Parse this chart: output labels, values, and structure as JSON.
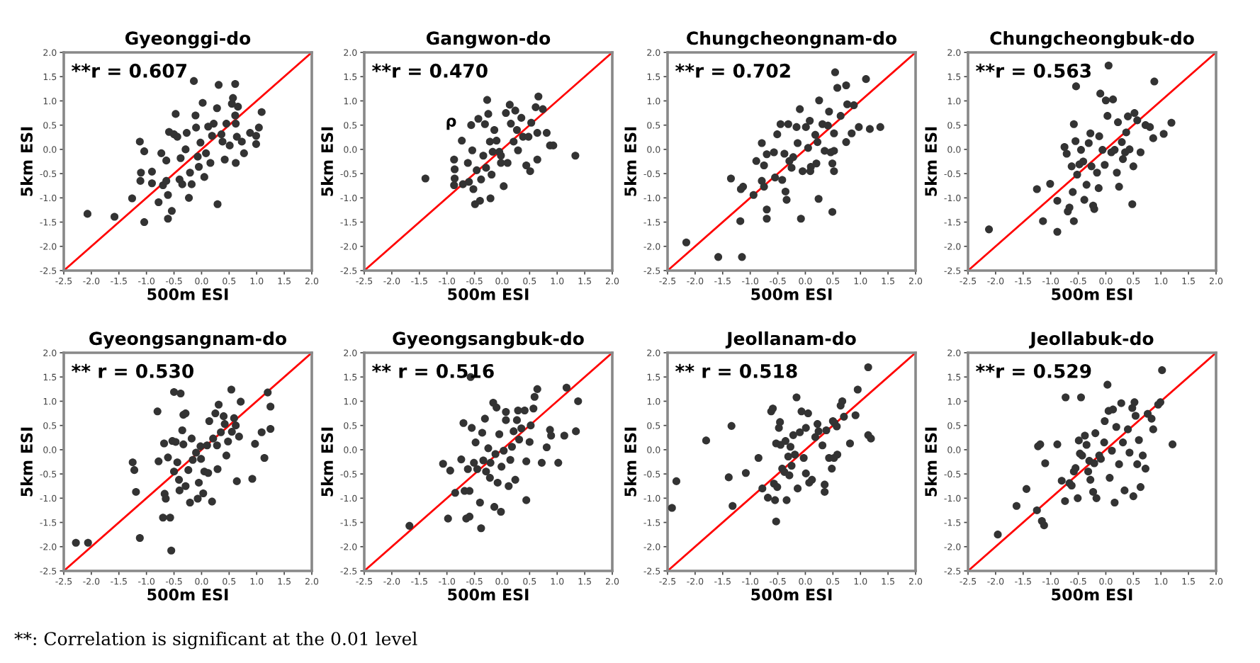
{
  "chart_data": [
    {
      "type": "scatter",
      "title": "Gyeonggi-do",
      "xlabel": "500m ESI",
      "ylabel": "5km ESI",
      "xlim": [
        -2.5,
        2.0
      ],
      "ylim": [
        -2.5,
        2.0
      ],
      "xticks": [
        -2.5,
        {
          "value": -2,
          "label": "-2.0"
        },
        -1.5,
        {
          "value": -1,
          "label": "-1.0"
        },
        -0.5,
        {
          "value": 0,
          "label": "0.0"
        },
        0.5,
        {
          "value": 1,
          "label": "1.0"
        },
        1.5,
        {
          "value": 2,
          "label": "2.0"
        }
      ],
      "yticks": [
        -2.5,
        {
          "value": -2,
          "label": "-2.0"
        },
        -1.5,
        {
          "value": -1,
          "label": "-1.0"
        },
        -0.5,
        {
          "value": 0,
          "label": "0.0"
        },
        0.5,
        {
          "value": 1,
          "label": "1.0"
        },
        1.5,
        {
          "value": 2,
          "label": "2.0"
        }
      ],
      "annotations": [
        "**r = 0.607"
      ],
      "series": [
        {
          "marker": "circle",
          "color": "#333333",
          "x": [
            -2.07,
            -1.58,
            -1.26,
            -1.04,
            -1.12,
            -1.04,
            -1.1,
            -1.11,
            -0.9,
            -0.9,
            -0.78,
            -0.73,
            -0.7,
            -0.64,
            -0.64,
            -0.61,
            -0.61,
            -0.54,
            -0.47,
            -0.59,
            -0.5,
            -0.44,
            -0.38,
            -0.4,
            -0.35,
            -0.29,
            -0.27,
            -0.23,
            -0.21,
            -0.18,
            -0.14,
            -0.11,
            -0.1,
            -0.07,
            -0.05,
            -0.02,
            0.02,
            0.05,
            0.08,
            0.12,
            0.16,
            0.19,
            0.22,
            0.28,
            0.29,
            0.31,
            0.36,
            0.42,
            0.45,
            0.51,
            0.55,
            0.57,
            0.61,
            0.61,
            0.62,
            0.66,
            0.64,
            0.73,
            0.77,
            0.88,
            0.99,
            0.99,
            1.04,
            1.09,
            0.62,
            0.38
          ],
          "values": [
            -1.33,
            -1.39,
            -1.01,
            -1.5,
            0.16,
            -0.04,
            -0.48,
            -0.65,
            -0.46,
            -0.7,
            -1.09,
            -0.08,
            -0.74,
            -0.65,
            -0.23,
            -0.94,
            -1.43,
            -1.27,
            0.73,
            0.36,
            0.31,
            0.26,
            -0.18,
            -0.62,
            -0.72,
            0.0,
            0.34,
            -1.0,
            -0.48,
            -0.72,
            1.41,
            0.7,
            0.45,
            -0.15,
            -0.36,
            0.14,
            0.96,
            -0.57,
            -0.08,
            0.47,
            -0.28,
            0.28,
            0.53,
            0.85,
            -1.13,
            1.33,
            0.31,
            -0.21,
            0.53,
            0.08,
            0.94,
            1.06,
            1.35,
            0.7,
            0.53,
            0.88,
            0.26,
            0.16,
            -0.08,
            0.34,
            0.28,
            0.11,
            0.45,
            0.77,
            -0.28,
            0.16
          ]
        },
        {
          "type": "line",
          "color": "#ff0000",
          "x": [
            -2.5,
            2.0
          ],
          "values": [
            -2.5,
            2.0
          ]
        }
      ]
    },
    {
      "type": "scatter",
      "title": "Gangwon-do",
      "xlabel": "500m ESI",
      "ylabel": "5km ESI",
      "xlim": [
        -2.5,
        2.0
      ],
      "ylim": [
        -2.5,
        2.0
      ],
      "xticks": [
        -2.5,
        {
          "value": -2,
          "label": "-2.0"
        },
        -1.5,
        {
          "value": -1,
          "label": "-1.0"
        },
        -0.5,
        {
          "value": 0,
          "label": "0.0"
        },
        0.5,
        {
          "value": 1,
          "label": "1.0"
        },
        1.5,
        {
          "value": 2,
          "label": "2.0"
        }
      ],
      "yticks": [
        -2.5,
        {
          "value": -2,
          "label": "-2.0"
        },
        -1.5,
        {
          "value": -1,
          "label": "-1.0"
        },
        -0.5,
        {
          "value": 0,
          "label": "0.0"
        },
        0.5,
        {
          "value": 1,
          "label": "1.0"
        },
        1.5,
        {
          "value": 2,
          "label": "2.0"
        }
      ],
      "annotations": [
        "**r = 0.470",
        "ρ"
      ],
      "series": [
        {
          "marker": "circle",
          "color": "#333333",
          "x": [
            -1.39,
            -0.87,
            -0.86,
            -0.86,
            -0.87,
            -0.73,
            -0.71,
            -0.62,
            -0.6,
            -0.56,
            -0.54,
            -0.52,
            -0.49,
            -0.46,
            -0.43,
            -0.4,
            -0.38,
            -0.34,
            -0.31,
            -0.29,
            -0.27,
            -0.25,
            -0.22,
            -0.21,
            -0.19,
            -0.14,
            -0.1,
            -0.05,
            -0.02,
            0.03,
            0.07,
            0.1,
            0.14,
            0.16,
            0.21,
            0.24,
            0.27,
            0.29,
            0.35,
            0.38,
            0.44,
            0.48,
            0.51,
            0.53,
            0.61,
            0.66,
            0.64,
            0.64,
            0.74,
            0.81,
            0.87,
            0.93,
            1.33,
            -0.02,
            -0.17
          ],
          "values": [
            -0.6,
            -0.21,
            -0.41,
            -0.6,
            -0.74,
            0.18,
            -0.72,
            -0.28,
            -0.67,
            0.5,
            -0.02,
            -0.82,
            -1.13,
            -0.43,
            0.63,
            -1.06,
            -0.62,
            -0.13,
            0.52,
            -0.38,
            1.02,
            0.73,
            0.16,
            -1.01,
            -0.52,
            0.4,
            0.18,
            -0.05,
            -0.28,
            -0.76,
            0.75,
            -0.28,
            0.92,
            0.53,
            0.16,
            0.8,
            0.4,
            -0.02,
            0.65,
            0.26,
            -0.33,
            0.26,
            -0.45,
            0.55,
            0.87,
            1.09,
            0.34,
            -0.21,
            0.83,
            0.34,
            0.08,
            0.08,
            -0.13,
            -0.13,
            -0.05
          ]
        },
        {
          "type": "line",
          "color": "#ff0000",
          "x": [
            -2.5,
            2.0
          ],
          "values": [
            -2.5,
            2.0
          ]
        }
      ]
    },
    {
      "type": "scatter",
      "title": "Chungcheongnam-do",
      "xlabel": "500m ESI",
      "ylabel": "5km ESI",
      "xlim": [
        -2.5,
        2.0
      ],
      "ylim": [
        -2.5,
        2.0
      ],
      "xticks": [
        -2.5,
        {
          "value": -2,
          "label": "-2.0"
        },
        -1.5,
        {
          "value": -1,
          "label": "-1.0"
        },
        -0.5,
        {
          "value": 0,
          "label": "0.0"
        },
        0.5,
        {
          "value": 1,
          "label": "1.0"
        },
        1.5,
        {
          "value": 2,
          "label": "2.0"
        }
      ],
      "yticks": [
        -2.5,
        {
          "value": -2,
          "label": "-2.0"
        },
        -1.5,
        {
          "value": -1,
          "label": "-1.0"
        },
        -0.5,
        {
          "value": 0,
          "label": "0.0"
        },
        0.5,
        {
          "value": 1,
          "label": "1.0"
        },
        1.5,
        {
          "value": 2,
          "label": "2.0"
        }
      ],
      "annotations": [
        "**r = 0.702"
      ],
      "series": [
        {
          "marker": "circle",
          "color": "#333333",
          "x": [
            -2.16,
            -1.58,
            -1.15,
            -1.35,
            -1.17,
            -1.13,
            -1.18,
            -0.94,
            -0.89,
            -0.79,
            -0.79,
            -0.75,
            -0.75,
            -0.7,
            -0.7,
            -0.7,
            -0.57,
            -0.55,
            -0.51,
            -0.45,
            -0.42,
            -0.38,
            -0.36,
            -0.34,
            -0.31,
            -0.29,
            -0.25,
            -0.22,
            -0.16,
            -0.14,
            -0.1,
            -0.08,
            -0.05,
            0.01,
            0.05,
            0.08,
            0.1,
            0.09,
            0.18,
            0.22,
            0.24,
            0.25,
            0.31,
            0.35,
            0.41,
            0.43,
            0.46,
            0.49,
            0.49,
            0.52,
            0.52,
            0.54,
            0.58,
            0.64,
            0.74,
            0.76,
            0.74,
            0.84,
            0.88,
            0.97,
            1.1,
            1.17,
            1.36,
            0.52,
            0.2
          ],
          "values": [
            -1.92,
            -2.22,
            -2.22,
            -0.6,
            -0.82,
            -0.77,
            -1.48,
            -0.94,
            -0.24,
            0.13,
            -0.65,
            -0.77,
            -0.33,
            -1.24,
            -1.43,
            -0.1,
            -0.06,
            -0.58,
            0.31,
            0.52,
            -0.63,
            -0.09,
            -0.87,
            -1.04,
            0.52,
            -0.24,
            -0.38,
            -0.16,
            0.46,
            0.13,
            0.83,
            -1.43,
            -0.45,
            0.46,
            0.03,
            0.59,
            -0.36,
            -0.45,
            0.3,
            0.15,
            -1.02,
            1.01,
            0.52,
            -0.03,
            0.49,
            0.78,
            -0.06,
            -0.29,
            -1.29,
            -0.45,
            0.33,
            1.59,
            1.27,
            0.69,
            1.32,
            0.93,
            0.15,
            0.33,
            0.91,
            0.46,
            1.45,
            0.42,
            0.46,
            -0.03,
            -0.29
          ]
        },
        {
          "type": "line",
          "color": "#ff0000",
          "x": [
            -2.5,
            2.0
          ],
          "values": [
            -2.5,
            2.0
          ]
        }
      ]
    },
    {
      "type": "scatter",
      "title": "Chungcheongbuk-do",
      "xlabel": "500m ESI",
      "ylabel": "5km ESI",
      "xlim": [
        -2.5,
        2.0
      ],
      "ylim": [
        -2.5,
        2.0
      ],
      "xticks": [
        -2.5,
        {
          "value": -2,
          "label": "-2.0"
        },
        -1.5,
        {
          "value": -1,
          "label": "-1.0"
        },
        -0.5,
        {
          "value": 0,
          "label": "0.0"
        },
        0.5,
        {
          "value": 1,
          "label": "1.0"
        },
        1.5,
        {
          "value": 2,
          "label": "2.0"
        }
      ],
      "yticks": [
        -2.5,
        {
          "value": -2,
          "label": "-2.0"
        },
        -1.5,
        {
          "value": -1,
          "label": "-1.0"
        },
        -0.5,
        {
          "value": 0,
          "label": "0.0"
        },
        0.5,
        {
          "value": 1,
          "label": "1.0"
        },
        1.5,
        {
          "value": 2,
          "label": "2.0"
        }
      ],
      "annotations": [
        "**r = 0.563"
      ],
      "series": [
        {
          "marker": "circle",
          "color": "#333333",
          "x": [
            -2.12,
            -1.25,
            -1.14,
            -1.01,
            -0.88,
            -0.88,
            -0.75,
            -0.71,
            -0.69,
            -0.66,
            -0.62,
            -0.6,
            -0.58,
            -0.58,
            -0.54,
            -0.55,
            -0.52,
            -0.48,
            -0.45,
            -0.41,
            -0.39,
            -0.35,
            -0.31,
            -0.28,
            -0.26,
            -0.23,
            -0.21,
            -0.16,
            -0.12,
            -0.1,
            -0.13,
            -0.06,
            -0.02,
            0.0,
            0.03,
            0.05,
            0.1,
            0.13,
            0.16,
            0.2,
            0.22,
            0.24,
            0.29,
            0.35,
            0.37,
            0.4,
            0.43,
            0.48,
            0.5,
            0.52,
            0.57,
            0.63,
            0.72,
            0.8,
            0.86,
            0.88,
            1.05,
            1.19,
            0.31
          ],
          "values": [
            -1.65,
            -0.82,
            -1.48,
            -0.71,
            -1.06,
            -1.7,
            0.05,
            -0.09,
            -1.28,
            -1.2,
            -0.35,
            -0.88,
            -1.48,
            0.52,
            1.3,
            0.17,
            -0.52,
            -0.31,
            -0.01,
            -0.25,
            -1.04,
            -0.73,
            0.13,
            0.33,
            -0.35,
            -1.16,
            -1.23,
            -0.48,
            0.27,
            1.15,
            -0.8,
            -0.01,
            -0.32,
            1.01,
            0.69,
            1.73,
            -0.06,
            1.03,
            -0.01,
            -0.48,
            0.56,
            -0.77,
            0.15,
            -0.06,
            0.35,
            0.68,
            0.0,
            -1.13,
            -0.35,
            0.75,
            0.6,
            -0.06,
            0.5,
            0.46,
            0.23,
            1.4,
            0.32,
            0.55,
            -0.2
          ]
        },
        {
          "type": "line",
          "color": "#ff0000",
          "x": [
            -2.5,
            2.0
          ],
          "values": [
            -2.5,
            2.0
          ]
        }
      ]
    },
    {
      "type": "scatter",
      "title": "Gyeongsangnam-do",
      "xlabel": "500m ESI",
      "ylabel": "5km ESI",
      "xlim": [
        -2.5,
        2.0
      ],
      "ylim": [
        -2.5,
        2.0
      ],
      "xticks": [
        -2.5,
        {
          "value": -2,
          "label": "-2.0"
        },
        -1.5,
        {
          "value": -1,
          "label": "-1.0"
        },
        -0.5,
        {
          "value": 0,
          "label": "0.0"
        },
        0.5,
        {
          "value": 1,
          "label": "1.0"
        },
        1.5,
        {
          "value": 2,
          "label": "2.0"
        }
      ],
      "yticks": [
        -2.5,
        {
          "value": -2,
          "label": "-2.0"
        },
        -1.5,
        {
          "value": -1,
          "label": "-1.0"
        },
        -0.5,
        {
          "value": 0,
          "label": "0.0"
        },
        0.5,
        {
          "value": 1,
          "label": "1.0"
        },
        1.5,
        {
          "value": 2,
          "label": "2.0"
        }
      ],
      "annotations": [
        "** r = 0.530",
        "**: Correlation is significant at the 0.01 level"
      ],
      "series": [
        {
          "marker": "circle",
          "color": "#333333",
          "x": [
            -2.28,
            -2.06,
            -1.12,
            -1.19,
            -1.22,
            -1.25,
            -0.8,
            -0.78,
            -0.68,
            -0.7,
            -0.57,
            -0.55,
            -0.67,
            -0.65,
            -0.61,
            -0.53,
            -0.5,
            -0.5,
            -0.47,
            -0.44,
            -0.41,
            -0.4,
            -0.38,
            -0.35,
            -0.33,
            -0.33,
            -0.29,
            -0.29,
            -0.24,
            -0.21,
            -0.18,
            -0.16,
            -0.1,
            -0.07,
            -0.05,
            -0.02,
            -0.01,
            0.03,
            0.05,
            0.1,
            0.12,
            0.14,
            0.19,
            0.21,
            0.25,
            0.28,
            0.29,
            0.31,
            0.35,
            0.4,
            0.42,
            0.45,
            0.48,
            0.54,
            0.55,
            0.59,
            0.62,
            0.64,
            0.68,
            0.71,
            0.92,
            0.97,
            1.09,
            1.14,
            1.2,
            1.25,
            1.25
          ],
          "values": [
            -1.92,
            -1.92,
            -1.82,
            -0.87,
            -0.42,
            -0.26,
            0.79,
            -0.24,
            0.13,
            -1.4,
            -1.4,
            -2.08,
            -0.91,
            -1.01,
            -0.16,
            0.18,
            -0.45,
            1.19,
            0.16,
            -0.26,
            -0.62,
            -0.84,
            1.16,
            0.4,
            0.11,
            0.72,
            0.75,
            -0.75,
            -0.42,
            -1.09,
            0.23,
            -0.21,
            -0.06,
            -1.01,
            -0.68,
            0.07,
            -0.19,
            -0.9,
            -0.45,
            0.09,
            -0.48,
            0.59,
            -1.07,
            0.23,
            0.75,
            0.09,
            -0.4,
            0.93,
            0.36,
            0.69,
            0.53,
            -0.12,
            0.17,
            1.24,
            0.37,
            0.65,
            0.5,
            -0.65,
            0.27,
            0.99,
            -0.6,
            0.12,
            0.36,
            -0.17,
            1.18,
            0.43,
            0.89
          ]
        },
        {
          "type": "line",
          "color": "#ff0000",
          "x": [
            -2.5,
            2.0
          ],
          "values": [
            -2.5,
            2.0
          ]
        }
      ]
    },
    {
      "type": "scatter",
      "title": "Gyeongsangbuk-do",
      "xlabel": "500m ESI",
      "ylabel": "5km ESI",
      "xlim": [
        -2.5,
        2.0
      ],
      "ylim": [
        -2.5,
        2.0
      ],
      "xticks": [
        -2.5,
        {
          "value": -2,
          "label": "-2.0"
        },
        -1.5,
        {
          "value": -1,
          "label": "-1.0"
        },
        -0.5,
        {
          "value": 0,
          "label": "0.0"
        },
        0.5,
        {
          "value": 1,
          "label": "1.0"
        },
        1.5,
        {
          "value": 2,
          "label": "2.0"
        }
      ],
      "yticks": [
        -2.5,
        {
          "value": -2,
          "label": "-2.0"
        },
        -1.5,
        {
          "value": -1,
          "label": "-1.0"
        },
        -0.5,
        {
          "value": 0,
          "label": "0.0"
        },
        0.5,
        {
          "value": 1,
          "label": "1.0"
        },
        1.5,
        {
          "value": 2,
          "label": "2.0"
        }
      ],
      "annotations": [
        "** r = 0.516"
      ],
      "series": [
        {
          "marker": "circle",
          "color": "#333333",
          "x": [
            -1.68,
            -1.07,
            -0.98,
            -0.94,
            -0.85,
            -0.74,
            -0.7,
            -0.68,
            -0.65,
            -0.62,
            -0.59,
            -0.59,
            -0.55,
            -0.51,
            -0.48,
            -0.45,
            -0.4,
            -0.38,
            -0.36,
            -0.34,
            -0.31,
            -0.29,
            -0.25,
            -0.22,
            -0.21,
            -0.16,
            -0.14,
            -0.12,
            -0.1,
            -0.08,
            -0.05,
            -0.02,
            -0.01,
            0.03,
            0.07,
            0.07,
            0.12,
            0.15,
            0.18,
            0.21,
            0.24,
            0.27,
            0.29,
            0.31,
            0.35,
            0.41,
            0.44,
            0.44,
            0.5,
            0.52,
            0.57,
            0.59,
            0.64,
            0.72,
            0.81,
            0.87,
            0.89,
            1.02,
            1.13,
            1.17,
            1.34,
            1.38,
            -0.57
          ],
          "values": [
            -1.57,
            -0.29,
            -1.42,
            -0.43,
            -0.89,
            -0.2,
            0.55,
            -0.85,
            -1.42,
            -0.4,
            -1.38,
            -0.85,
            0.45,
            -0.27,
            0.15,
            -0.4,
            -1.09,
            -1.62,
            0.35,
            -0.22,
            0.64,
            -0.45,
            0.03,
            -0.58,
            -0.27,
            0.97,
            -1.18,
            -0.09,
            0.87,
            -0.68,
            0.32,
            -1.28,
            -0.35,
            -0.02,
            0.61,
            0.78,
            -0.75,
            -0.21,
            0.06,
            0.38,
            -0.62,
            0.61,
            0.81,
            0.21,
            0.44,
            0.81,
            -0.24,
            -1.04,
            0.16,
            0.5,
            0.85,
            1.09,
            1.25,
            -0.27,
            0.05,
            0.41,
            0.29,
            -0.27,
            0.29,
            1.28,
            0.38,
            1.0,
            1.5
          ]
        },
        {
          "type": "line",
          "color": "#ff0000",
          "x": [
            -2.5,
            2.0
          ],
          "values": [
            -2.5,
            2.0
          ]
        }
      ]
    },
    {
      "type": "scatter",
      "title": "Jeollanam-do",
      "xlabel": "500m ESI",
      "ylabel": "5km ESI",
      "xlim": [
        -2.5,
        2.0
      ],
      "ylim": [
        -2.5,
        2.0
      ],
      "xticks": [
        -2.5,
        {
          "value": -2,
          "label": "-2.0"
        },
        -1.5,
        {
          "value": -1,
          "label": "-1.0"
        },
        -0.5,
        {
          "value": 0,
          "label": "0.0"
        },
        0.5,
        {
          "value": 1,
          "label": "1.0"
        },
        1.5,
        {
          "value": 2,
          "label": "2.0"
        }
      ],
      "yticks": [
        -2.5,
        {
          "value": -2,
          "label": "-2.0"
        },
        -1.5,
        {
          "value": -1,
          "label": "-1.0"
        },
        -0.5,
        {
          "value": 0,
          "label": "0.0"
        },
        0.5,
        {
          "value": 1,
          "label": "1.0"
        },
        1.5,
        {
          "value": 2,
          "label": "2.0"
        }
      ],
      "annotations": [
        "** r = 0.518"
      ],
      "series": [
        {
          "marker": "circle",
          "color": "#333333",
          "x": [
            -2.42,
            -2.34,
            -1.8,
            -1.39,
            -1.34,
            -1.32,
            -1.08,
            -0.85,
            -0.78,
            -0.68,
            -0.62,
            -0.59,
            -0.57,
            -0.55,
            -0.53,
            -0.51,
            -0.53,
            -0.48,
            -0.46,
            -0.45,
            -0.42,
            -0.38,
            -0.36,
            -0.34,
            -0.31,
            -0.29,
            -0.27,
            -0.25,
            -0.22,
            -0.19,
            -0.16,
            -0.14,
            -0.1,
            -0.07,
            -0.03,
            0.01,
            0.01,
            0.05,
            0.07,
            0.12,
            0.18,
            0.22,
            0.24,
            0.31,
            0.35,
            0.35,
            0.38,
            0.43,
            0.48,
            0.5,
            0.53,
            0.57,
            0.58,
            0.64,
            0.67,
            0.7,
            0.81,
            0.91,
            0.95,
            1.14,
            1.14,
            1.19,
            0.52
          ],
          "values": [
            -1.2,
            -0.65,
            0.19,
            -0.57,
            0.49,
            -1.16,
            -0.48,
            -0.17,
            -0.8,
            -0.99,
            0.79,
            0.85,
            -0.7,
            -1.04,
            -1.48,
            -0.77,
            0.13,
            0.45,
            0.57,
            0.1,
            -0.39,
            -0.46,
            0.18,
            -1.04,
            -0.14,
            -0.53,
            0.06,
            -0.33,
            0.3,
            -0.1,
            1.08,
            -0.8,
            0.36,
            0.79,
            -0.17,
            0.45,
            -0.49,
            0.75,
            -0.68,
            -0.62,
            0.26,
            0.53,
            0.38,
            0.09,
            -0.72,
            -0.87,
            0.4,
            -0.17,
            -0.39,
            0.59,
            0.55,
            0.48,
            -0.1,
            0.91,
            1.0,
            0.68,
            0.13,
            0.71,
            1.24,
            1.7,
            0.3,
            0.23,
            -0.17
          ]
        },
        {
          "type": "line",
          "color": "#ff0000",
          "x": [
            -2.5,
            2.0
          ],
          "values": [
            -2.5,
            2.0
          ]
        }
      ]
    },
    {
      "type": "scatter",
      "title": "Jeollabuk-do",
      "xlabel": "500m ESI",
      "ylabel": "5km ESI",
      "xlim": [
        -2.5,
        2.0
      ],
      "ylim": [
        -2.5,
        2.0
      ],
      "xticks": [
        -2.5,
        {
          "value": -2,
          "label": "-2.0"
        },
        -1.5,
        {
          "value": -1,
          "label": "-1.0"
        },
        -0.5,
        {
          "value": 0,
          "label": "0.0"
        },
        0.5,
        {
          "value": 1,
          "label": "1.0"
        },
        1.5,
        {
          "value": 2,
          "label": "2.0"
        }
      ],
      "yticks": [
        -2.5,
        {
          "value": -2,
          "label": "-2.0"
        },
        -1.5,
        {
          "value": -1,
          "label": "-1.0"
        },
        -0.5,
        {
          "value": 0,
          "label": "0.0"
        },
        0.5,
        {
          "value": 1,
          "label": "1.0"
        },
        1.5,
        {
          "value": 2,
          "label": "2.0"
        }
      ],
      "annotations": [
        "**r = 0.529"
      ],
      "series": [
        {
          "marker": "circle",
          "color": "#333333",
          "x": [
            -1.96,
            -1.62,
            -1.44,
            -1.25,
            -1.23,
            -1.19,
            -1.16,
            -1.12,
            -1.1,
            -0.88,
            -0.8,
            -0.73,
            -0.74,
            -0.66,
            -0.62,
            -0.58,
            -0.55,
            -0.51,
            -0.49,
            -0.47,
            -0.45,
            -0.43,
            -0.38,
            -0.35,
            -0.32,
            -0.3,
            -0.28,
            -0.23,
            -0.21,
            -0.17,
            -0.19,
            -0.12,
            -0.09,
            -0.03,
            -0.02,
            0.03,
            0.05,
            0.07,
            0.11,
            0.13,
            0.16,
            0.19,
            0.24,
            0.28,
            0.31,
            0.34,
            0.4,
            0.43,
            0.48,
            0.5,
            0.52,
            0.54,
            0.57,
            0.6,
            0.63,
            0.67,
            0.72,
            0.76,
            0.83,
            0.86,
            0.95,
            0.99,
            1.02,
            1.21
          ],
          "values": [
            -1.75,
            -1.16,
            -0.81,
            -1.25,
            0.07,
            0.11,
            -1.47,
            -1.56,
            -0.28,
            0.11,
            -0.64,
            1.08,
            -1.06,
            -0.69,
            -0.74,
            -0.45,
            -0.38,
            -1.0,
            0.19,
            -0.08,
            1.08,
            -0.12,
            0.29,
            0.1,
            -0.45,
            -0.23,
            -0.62,
            -0.87,
            -0.28,
            -1.0,
            0.34,
            -0.12,
            -0.19,
            0.15,
            0.59,
            1.34,
            0.8,
            -0.58,
            -0.02,
            0.83,
            -1.09,
            0.47,
            -0.3,
            0.96,
            0.15,
            -0.84,
            0.42,
            -0.06,
            0.86,
            -0.96,
            0.98,
            0.7,
            -0.3,
            0.2,
            -0.77,
            -0.12,
            -0.39,
            0.74,
            0.64,
            0.42,
            0.93,
            0.98,
            1.64,
            0.11
          ]
        },
        {
          "type": "line",
          "color": "#ff0000",
          "x": [
            -2.5,
            2.0
          ],
          "values": [
            -2.5,
            2.0
          ]
        }
      ]
    }
  ]
}
